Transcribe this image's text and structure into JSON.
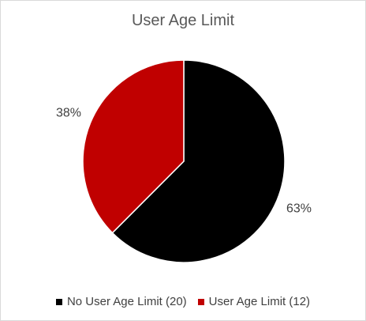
{
  "chart_data": {
    "type": "pie",
    "title": "User Age Limit",
    "categories": [
      "No User Age Limit (20)",
      "User Age Limit (12)"
    ],
    "values": [
      20,
      12
    ],
    "labels": [
      "63%",
      "38%"
    ],
    "colors": [
      "#000000",
      "#c00000"
    ],
    "legend_position": "bottom"
  }
}
